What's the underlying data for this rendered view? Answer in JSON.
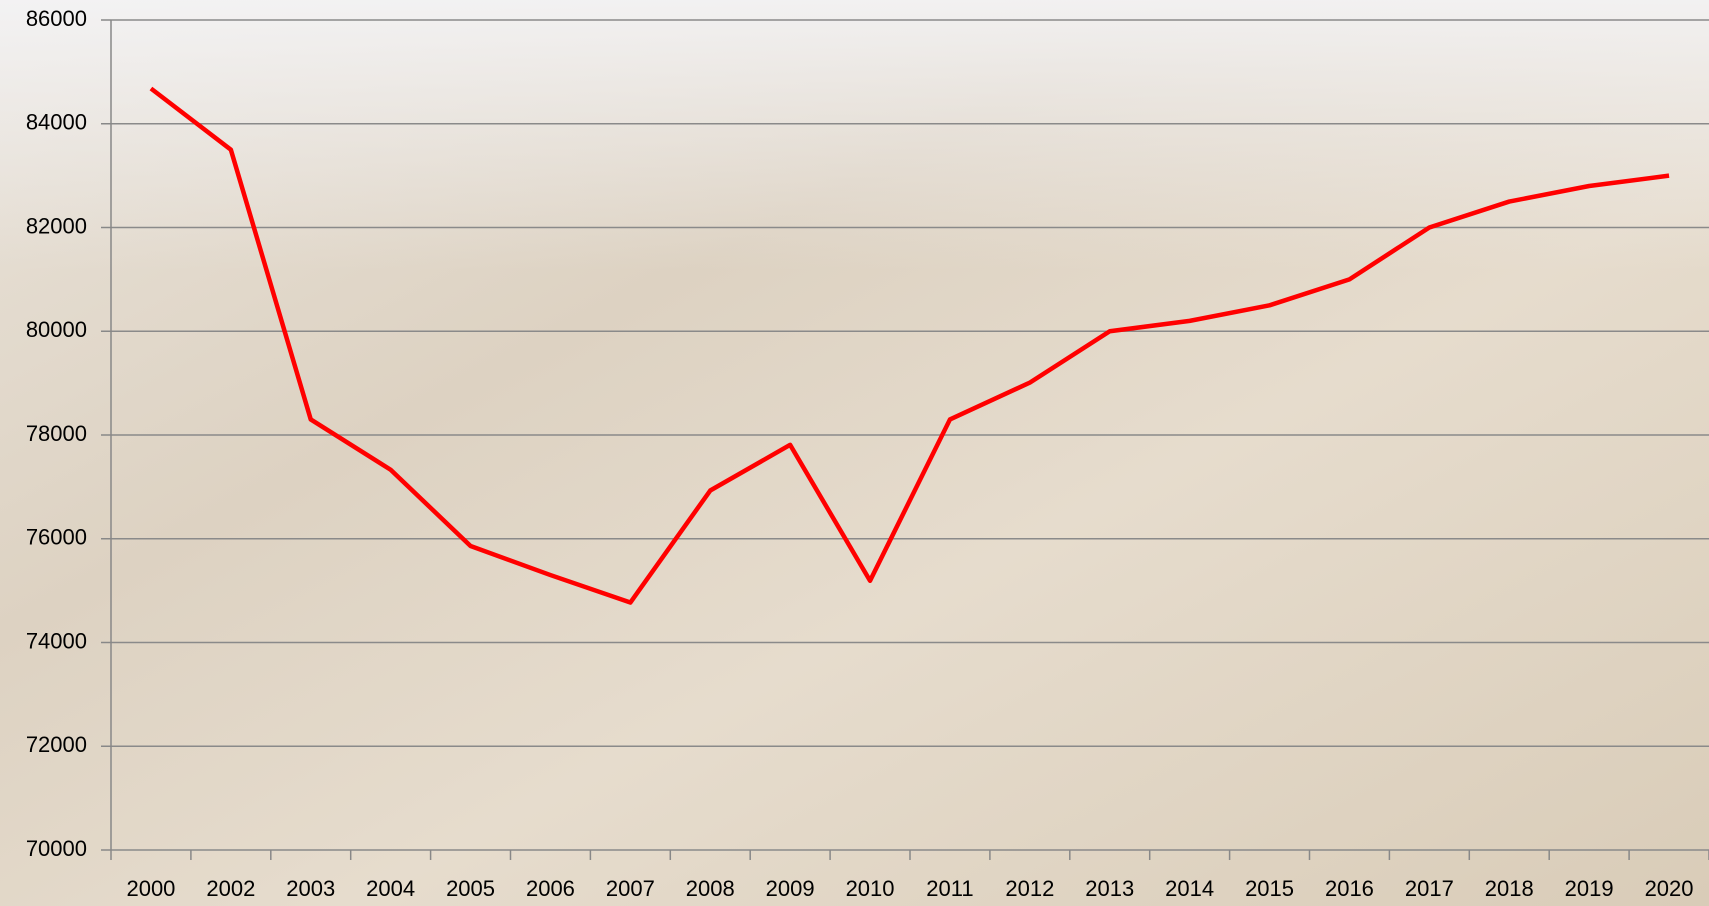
{
  "chart_data": {
    "type": "line",
    "categories": [
      "2000",
      "2002",
      "2003",
      "2004",
      "2005",
      "2006",
      "2007",
      "2008",
      "2009",
      "2010",
      "2011",
      "2012",
      "2013",
      "2014",
      "2015",
      "2016",
      "2017",
      "2018",
      "2019",
      "2020"
    ],
    "series": [
      {
        "color": "#ff0000",
        "values": [
          84680,
          83500,
          78300,
          77330,
          75860,
          75300,
          74770,
          76930,
          77810,
          75190,
          78300,
          79010,
          80000,
          80200,
          80500,
          81000,
          82000,
          82500,
          82800,
          83000
        ]
      }
    ],
    "ylim": [
      70000,
      86000
    ],
    "yticks": [
      70000,
      72000,
      74000,
      76000,
      78000,
      80000,
      82000,
      84000,
      86000
    ],
    "grid": true
  }
}
